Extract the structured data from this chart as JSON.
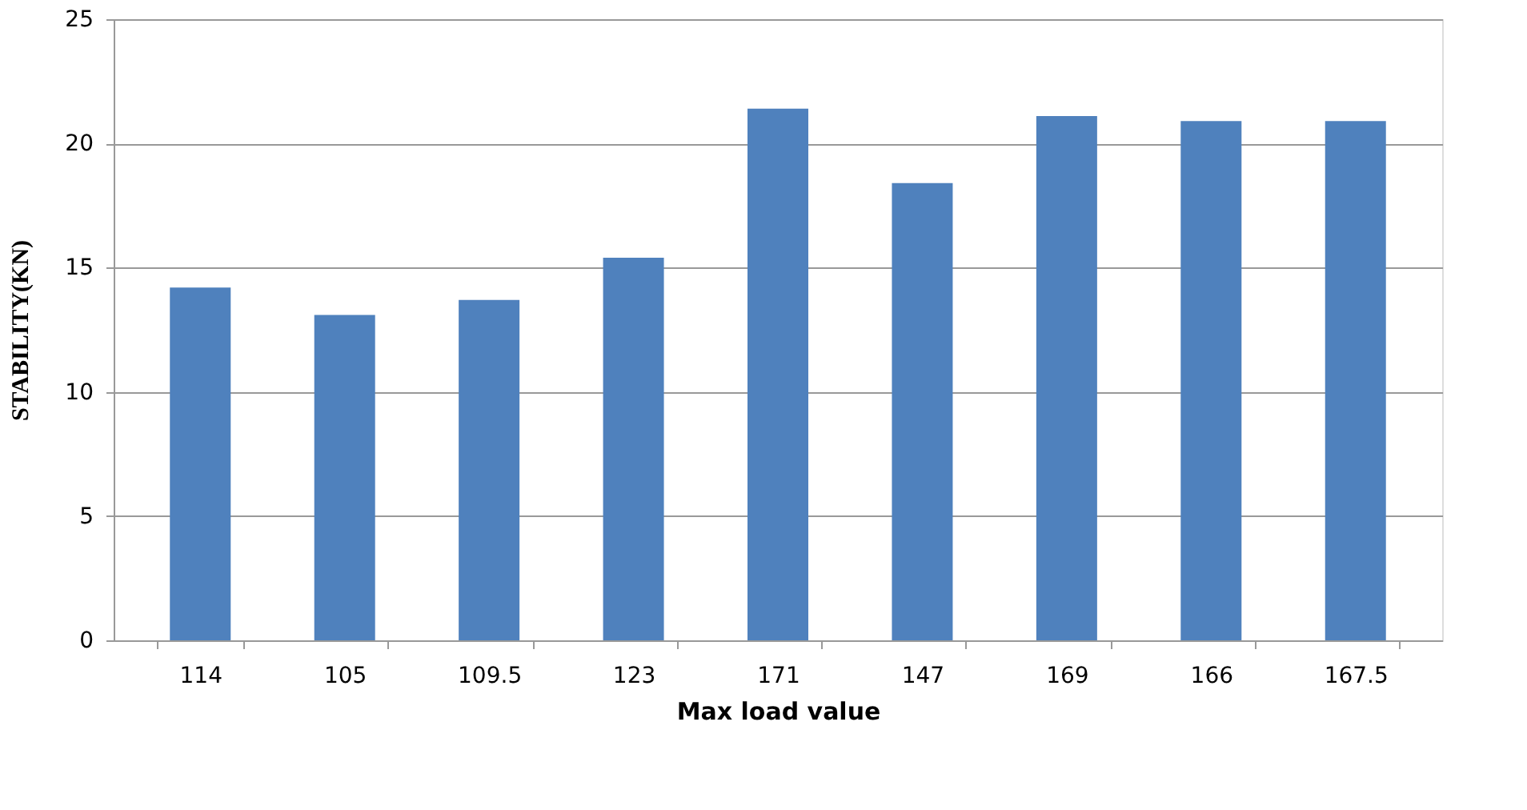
{
  "chart_data": {
    "type": "bar",
    "xlabel": "Max load value",
    "ylabel": "STABILITY(KN)",
    "categories": [
      "114",
      "105",
      "109.5",
      "123",
      "171",
      "147",
      "169",
      "166",
      "167.5"
    ],
    "values": [
      14.2,
      13.1,
      13.7,
      15.4,
      21.4,
      18.4,
      21.1,
      20.9,
      20.9
    ],
    "color": "#4f81bd",
    "ylim": [
      0,
      25
    ],
    "yticks": [
      0,
      5,
      10,
      15,
      20,
      25
    ],
    "grid": "y"
  }
}
